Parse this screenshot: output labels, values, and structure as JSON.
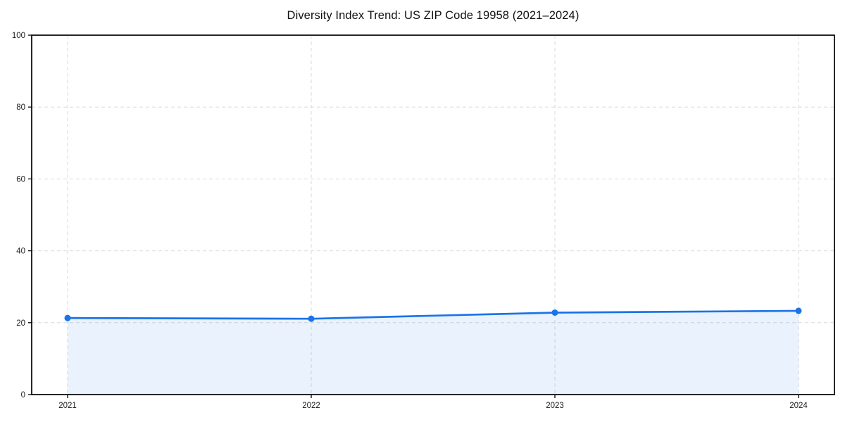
{
  "chart_data": {
    "type": "line",
    "title": "Diversity Index Trend: US ZIP Code 19958 (2021–2024)",
    "categories": [
      "2021",
      "2022",
      "2023",
      "2024"
    ],
    "series": [
      {
        "name": "Diversity Index",
        "values": [
          21.3,
          21.1,
          22.8,
          23.3
        ]
      }
    ],
    "xlabel": "",
    "ylabel": "",
    "ylim": [
      0,
      100
    ],
    "yticks": [
      0,
      20,
      40,
      60,
      80,
      100
    ],
    "grid": "dashed-both-axes",
    "legend_position": "none",
    "area_fill": true,
    "marker": "circle",
    "colors": {
      "line": "#1a73e8",
      "marker": "#1a73e8",
      "area_fill": "rgba(26,115,232,0.09)",
      "grid": "#dadada",
      "axis_box": "#000000",
      "tick_text": "#1a1a1a",
      "background": "#ffffff"
    }
  }
}
